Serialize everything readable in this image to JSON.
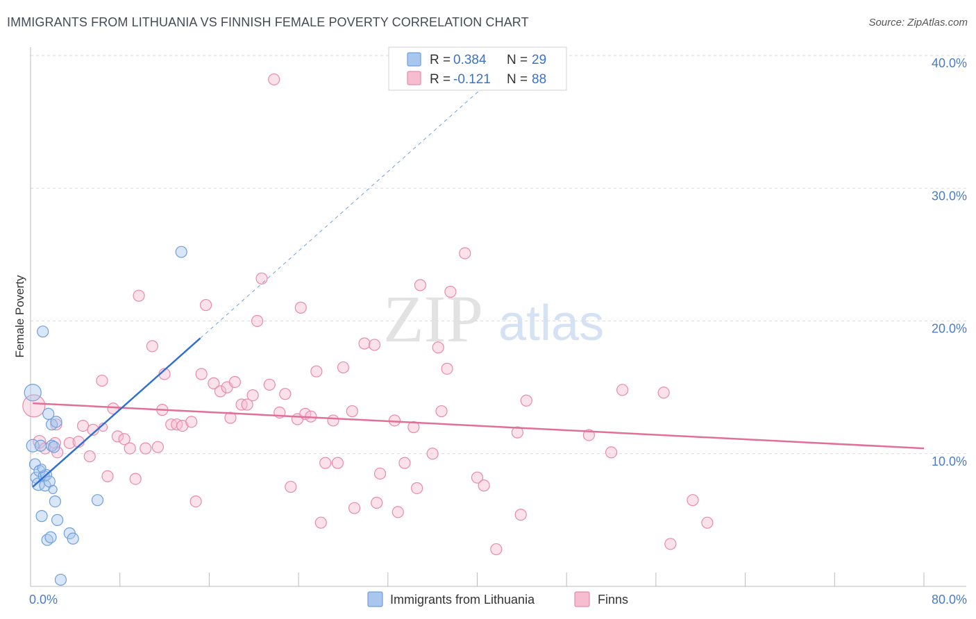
{
  "title": "IMMIGRANTS FROM LITHUANIA VS FINNISH FEMALE POVERTY CORRELATION CHART",
  "source": "Source: ZipAtlas.com",
  "watermark": {
    "zip": "ZIP",
    "atlas": "atlas"
  },
  "colors": {
    "blue_fill": "#a9c7ee",
    "blue_stroke": "#6f9fdc",
    "blue_line": "#2f6fd2",
    "pink_fill": "#f6bcd0",
    "pink_stroke": "#e98aab",
    "pink_line": "#e0709a",
    "grid": "#d9d9d9",
    "tick_text": "#4a7cc7"
  },
  "legend": {
    "rows": [
      {
        "r_label": "R =",
        "r_value": "0.384",
        "n_label": "N =",
        "n_value": "29",
        "series": "blue"
      },
      {
        "r_label": "R =",
        "r_value": "-0.121",
        "n_label": "N =",
        "n_value": "88",
        "series": "pink"
      }
    ]
  },
  "chart_data": {
    "type": "scatter",
    "title": "IMMIGRANTS FROM LITHUANIA VS FINNISH FEMALE POVERTY CORRELATION CHART",
    "xlabel": "",
    "ylabel": "Female Poverty",
    "xlim": [
      0,
      80
    ],
    "ylim": [
      0,
      40
    ],
    "x_tick_labels": [
      "0.0%",
      "80.0%"
    ],
    "y_tick_labels": [
      "10.0%",
      "20.0%",
      "30.0%",
      "40.0%"
    ],
    "y_ticks": [
      10,
      20,
      30,
      40
    ],
    "series": [
      {
        "name": "Immigrants from Lithuania",
        "color": "blue",
        "r": 0.384,
        "n": 29,
        "trend": {
          "x0": 0.2,
          "y0": 7.5,
          "x1": 15.2,
          "y1": 18.7,
          "extend_to_x": 42
        },
        "points": [
          [
            0.2,
            14.6,
            12
          ],
          [
            0.2,
            10.6,
            9
          ],
          [
            0.4,
            9.2,
            8
          ],
          [
            0.5,
            8.2,
            8
          ],
          [
            0.7,
            7.7,
            9
          ],
          [
            0.8,
            8.7,
            8
          ],
          [
            0.9,
            10.6,
            8
          ],
          [
            1.0,
            5.3,
            8
          ],
          [
            1.1,
            19.2,
            8
          ],
          [
            1.2,
            8.3,
            8
          ],
          [
            1.3,
            7.6,
            8
          ],
          [
            1.4,
            8.4,
            8
          ],
          [
            1.5,
            3.5,
            8
          ],
          [
            1.6,
            13.0,
            8
          ],
          [
            1.7,
            7.9,
            8
          ],
          [
            1.8,
            3.7,
            8
          ],
          [
            1.9,
            10.6,
            8
          ],
          [
            1.9,
            12.2,
            8
          ],
          [
            2.1,
            10.5,
            8
          ],
          [
            2.2,
            6.4,
            8
          ],
          [
            2.3,
            12.4,
            8
          ],
          [
            2.4,
            5.0,
            8
          ],
          [
            2.7,
            0.5,
            8
          ],
          [
            3.5,
            4.0,
            8
          ],
          [
            3.8,
            3.6,
            8
          ],
          [
            6.0,
            6.5,
            8
          ],
          [
            13.5,
            25.2,
            8
          ],
          [
            2.0,
            7.3,
            6
          ],
          [
            1.0,
            8.9,
            6
          ]
        ]
      },
      {
        "name": "Finns",
        "color": "pink",
        "r": -0.121,
        "n": 88,
        "trend": {
          "x0": 0.2,
          "y0": 13.8,
          "x1": 80,
          "y1": 10.4
        },
        "points": [
          [
            0.3,
            13.6,
            16
          ],
          [
            0.8,
            10.9,
            9
          ],
          [
            1.3,
            10.4,
            8
          ],
          [
            2.2,
            10.8,
            8
          ],
          [
            2.3,
            12.2,
            8
          ],
          [
            2.4,
            10.1,
            8
          ],
          [
            3.5,
            10.8,
            8
          ],
          [
            4.3,
            10.9,
            8
          ],
          [
            4.7,
            12.1,
            8
          ],
          [
            5.3,
            9.8,
            8
          ],
          [
            5.6,
            11.8,
            8
          ],
          [
            6.4,
            15.5,
            8
          ],
          [
            6.9,
            8.3,
            8
          ],
          [
            7.4,
            13.4,
            8
          ],
          [
            7.8,
            11.3,
            8
          ],
          [
            8.4,
            11.1,
            8
          ],
          [
            8.9,
            10.4,
            8
          ],
          [
            9.4,
            8.1,
            8
          ],
          [
            9.7,
            21.9,
            8
          ],
          [
            10.3,
            10.4,
            8
          ],
          [
            10.9,
            18.1,
            8
          ],
          [
            11.4,
            10.5,
            8
          ],
          [
            11.8,
            13.3,
            8
          ],
          [
            12.0,
            16.0,
            8
          ],
          [
            12.6,
            12.2,
            8
          ],
          [
            13.1,
            12.2,
            8
          ],
          [
            13.6,
            12.1,
            8
          ],
          [
            14.4,
            12.4,
            8
          ],
          [
            14.8,
            6.4,
            8
          ],
          [
            15.3,
            16.0,
            8
          ],
          [
            15.7,
            21.2,
            8
          ],
          [
            16.4,
            15.3,
            8
          ],
          [
            17.0,
            14.7,
            8
          ],
          [
            17.6,
            15.0,
            8
          ],
          [
            17.9,
            12.7,
            8
          ],
          [
            18.3,
            15.4,
            8
          ],
          [
            18.9,
            13.7,
            8
          ],
          [
            19.4,
            13.7,
            8
          ],
          [
            19.9,
            14.4,
            8
          ],
          [
            20.3,
            20.0,
            8
          ],
          [
            20.7,
            23.2,
            8
          ],
          [
            21.4,
            15.2,
            8
          ],
          [
            21.8,
            38.2,
            8
          ],
          [
            22.3,
            13.1,
            8
          ],
          [
            22.8,
            14.5,
            8
          ],
          [
            23.3,
            7.5,
            8
          ],
          [
            23.9,
            12.6,
            8
          ],
          [
            24.2,
            21.0,
            8
          ],
          [
            24.6,
            13.0,
            8
          ],
          [
            25.1,
            12.8,
            8
          ],
          [
            25.6,
            16.2,
            8
          ],
          [
            26.0,
            4.8,
            8
          ],
          [
            26.4,
            9.3,
            8
          ],
          [
            27.1,
            12.5,
            8
          ],
          [
            27.5,
            9.3,
            8
          ],
          [
            28.0,
            16.5,
            8
          ],
          [
            28.8,
            13.2,
            8
          ],
          [
            29.0,
            5.9,
            8
          ],
          [
            29.9,
            18.3,
            8
          ],
          [
            30.8,
            18.2,
            8
          ],
          [
            31.0,
            6.3,
            8
          ],
          [
            31.3,
            8.5,
            8
          ],
          [
            32.6,
            12.5,
            8
          ],
          [
            32.9,
            5.6,
            8
          ],
          [
            33.5,
            9.3,
            8
          ],
          [
            34.3,
            12.0,
            8
          ],
          [
            34.6,
            7.4,
            8
          ],
          [
            34.9,
            22.7,
            8
          ],
          [
            36.0,
            10.0,
            8
          ],
          [
            36.5,
            18.0,
            8
          ],
          [
            36.8,
            13.2,
            8
          ],
          [
            37.3,
            16.4,
            8
          ],
          [
            37.6,
            22.2,
            8
          ],
          [
            38.9,
            25.1,
            8
          ],
          [
            40.0,
            8.2,
            8
          ],
          [
            40.6,
            7.6,
            8
          ],
          [
            41.7,
            2.8,
            8
          ],
          [
            43.6,
            11.6,
            8
          ],
          [
            43.9,
            5.4,
            8
          ],
          [
            44.4,
            14.0,
            8
          ],
          [
            50.0,
            11.4,
            8
          ],
          [
            52.0,
            10.1,
            8
          ],
          [
            53.0,
            14.8,
            8
          ],
          [
            56.7,
            14.6,
            8
          ],
          [
            57.3,
            3.2,
            8
          ],
          [
            59.3,
            6.5,
            8
          ],
          [
            60.6,
            4.8,
            8
          ],
          [
            6.5,
            12.0,
            6
          ]
        ]
      }
    ],
    "legend_placement": "top-center"
  },
  "bottom_legend": {
    "items": [
      {
        "label": "Immigrants from Lithuania",
        "series": "blue"
      },
      {
        "label": "Finns",
        "series": "pink"
      }
    ]
  }
}
